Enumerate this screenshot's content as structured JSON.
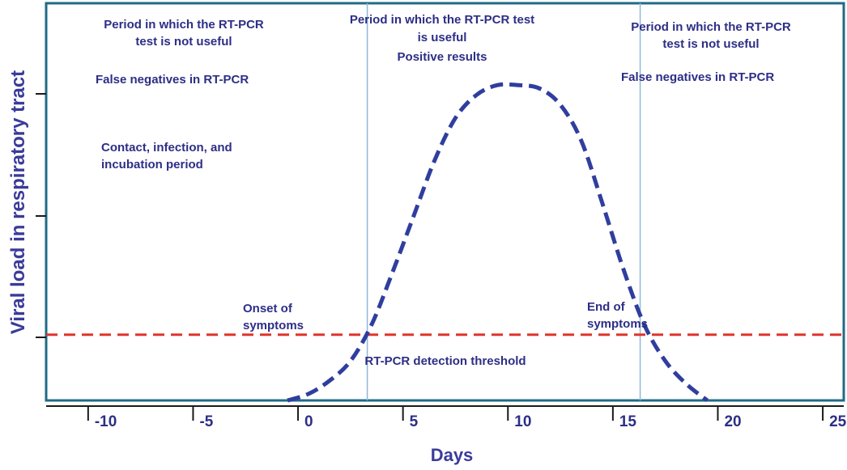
{
  "chart_data": {
    "type": "line",
    "xlabel": "Days",
    "ylabel": "Viral load in respiratory tract",
    "x_ticks": [
      -10,
      -5,
      0,
      5,
      10,
      15,
      20,
      25
    ],
    "xlim": [
      -12,
      26
    ],
    "ylim": [
      0,
      10
    ],
    "grid": false,
    "series": [
      {
        "x": [
          -0.5,
          0.5,
          1.5,
          2.5,
          3.5,
          4.5,
          5.5,
          6.5,
          7.5,
          8.5,
          9.5,
          10.5,
          11.5,
          12.5,
          13.5,
          14.5,
          15.5,
          16.5,
          17.5,
          18.5,
          19.5
        ],
        "y": [
          0.0,
          0.2,
          0.6,
          1.2,
          2.3,
          3.9,
          5.6,
          7.3,
          8.6,
          9.3,
          9.6,
          9.6,
          9.5,
          9.0,
          7.9,
          6.0,
          4.0,
          2.3,
          1.2,
          0.5,
          0.0
        ],
        "color": "#2f3e9e",
        "style": "dashed"
      }
    ],
    "threshold": {
      "y": 2.0,
      "label": "RT-PCR detection threshold",
      "color": "#e0342b",
      "style": "dashed"
    },
    "vertical_lines": [
      {
        "x": 3.3,
        "label": "Onset of symptoms",
        "color": "#8fb8d8"
      },
      {
        "x": 16.3,
        "label": "End of symptoms",
        "color": "#8fb8d8"
      }
    ],
    "annotations": {
      "left": {
        "period": [
          "Period in which the RT-PCR",
          "test is not useful"
        ],
        "note": "False negatives in RT-PCR",
        "extra": [
          "Contact, infection, and",
          "incubation period"
        ]
      },
      "middle": {
        "period": [
          "Period in which the RT-PCR test",
          "is useful"
        ],
        "note": "Positive results"
      },
      "right": {
        "period": [
          "Period in which the RT-PCR",
          "test is not useful"
        ],
        "note": "False negatives in RT-PCR"
      }
    },
    "colors": {
      "frame": "#1f6b86",
      "text": "#2d2e86",
      "axis": "#1a1a1a"
    }
  }
}
